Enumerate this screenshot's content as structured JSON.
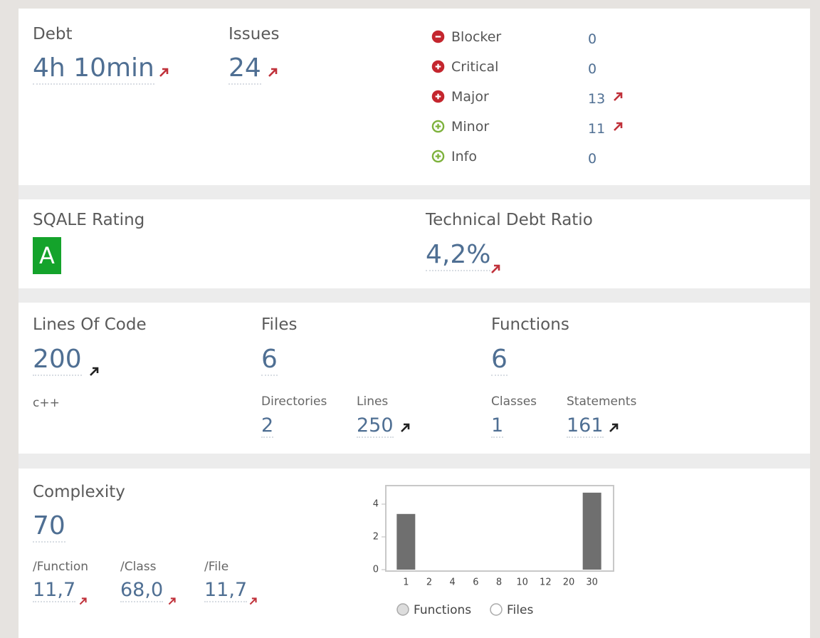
{
  "issues_panel": {
    "debt": {
      "label": "Debt",
      "value": "4h 10min"
    },
    "issues": {
      "label": "Issues",
      "value": 24
    },
    "severities": [
      {
        "name": "Blocker",
        "count": 0
      },
      {
        "name": "Critical",
        "count": 0
      },
      {
        "name": "Major",
        "count": 13
      },
      {
        "name": "Minor",
        "count": 11
      },
      {
        "name": "Info",
        "count": 0
      }
    ]
  },
  "sqale_panel": {
    "rating": {
      "label": "SQALE Rating",
      "value": "A"
    },
    "debt_ratio": {
      "label": "Technical Debt Ratio",
      "value": "4,2%"
    }
  },
  "size_panel": {
    "lines_of_code": {
      "label": "Lines Of Code",
      "value": 200,
      "language": "c++"
    },
    "files": {
      "label": "Files",
      "value": 6
    },
    "functions": {
      "label": "Functions",
      "value": 6
    },
    "directories": {
      "label": "Directories",
      "value": 2
    },
    "lines": {
      "label": "Lines",
      "value": 250
    },
    "classes": {
      "label": "Classes",
      "value": 1
    },
    "statements": {
      "label": "Statements",
      "value": 161
    }
  },
  "complexity_panel": {
    "complexity": {
      "label": "Complexity",
      "value": 70
    },
    "per_function": {
      "label": "/Function",
      "value": "11,7"
    },
    "per_class": {
      "label": "/Class",
      "value": "68,0"
    },
    "per_file": {
      "label": "/File",
      "value": "11,7"
    },
    "chart_data": {
      "type": "bar",
      "categories": [
        "1",
        "2",
        "4",
        "6",
        "8",
        "10",
        "12",
        "20",
        "30"
      ],
      "values": [
        3.4,
        0,
        0,
        0,
        0,
        0,
        0,
        0,
        4.7
      ],
      "color": "#6f6f6f",
      "ylim": [
        0,
        5
      ],
      "yticks": [
        0,
        2,
        4
      ],
      "options": [
        "Functions",
        "Files"
      ]
    }
  }
}
